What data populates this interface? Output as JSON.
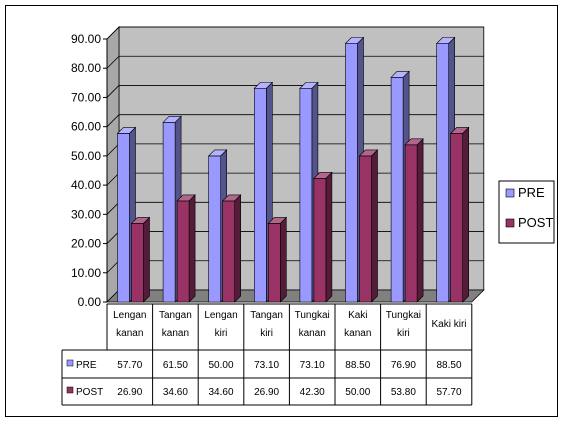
{
  "chart_data": {
    "type": "bar",
    "categories": [
      [
        "Lengan",
        "kanan"
      ],
      [
        "Tangan",
        "kanan"
      ],
      [
        "Lengan",
        "kiri"
      ],
      [
        "Tangan",
        "kiri"
      ],
      [
        "Tungkai",
        "kanan"
      ],
      [
        "Kaki",
        "kanan"
      ],
      [
        "Tungkai",
        "kiri"
      ],
      [
        "Kaki kiri"
      ]
    ],
    "series": [
      {
        "name": "PRE",
        "color": "#9999FF",
        "values": [
          57.7,
          61.5,
          50.0,
          73.1,
          73.1,
          88.5,
          76.9,
          88.5
        ],
        "labels": [
          "57.70",
          "61.50",
          "50.00",
          "73.10",
          "73.10",
          "88.50",
          "76.90",
          "88.50"
        ]
      },
      {
        "name": "POST",
        "color": "#993366",
        "values": [
          26.9,
          34.6,
          34.6,
          26.9,
          42.3,
          50.0,
          53.8,
          57.7
        ],
        "labels": [
          "26.90",
          "34.60",
          "34.60",
          "26.90",
          "42.30",
          "50.00",
          "53.80",
          "57.70"
        ]
      }
    ],
    "ylim": [
      0,
      90
    ],
    "yticks": [
      "0.00",
      "10.00",
      "20.00",
      "30.00",
      "40.00",
      "50.00",
      "60.00",
      "70.00",
      "80.00",
      "90.00"
    ],
    "grid": true,
    "legend": "right",
    "data_table": true,
    "wall_color": "#C0C0C0",
    "title": "",
    "xlabel": "",
    "ylabel": ""
  }
}
